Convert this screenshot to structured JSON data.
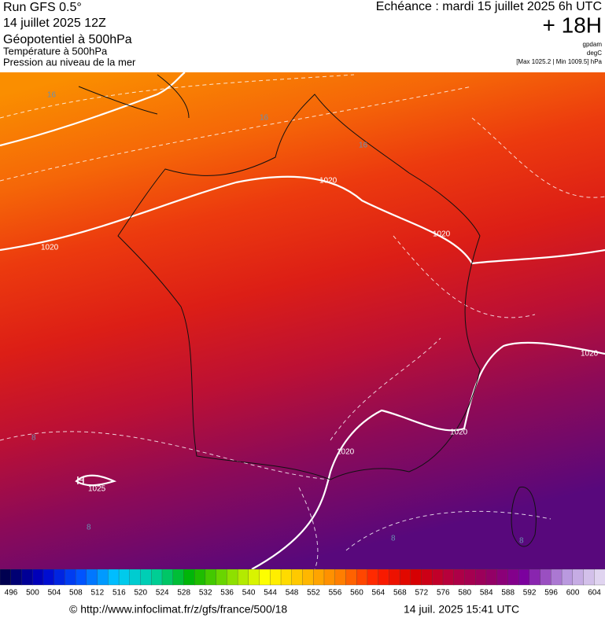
{
  "header": {
    "left": [
      "Run GFS 0.5°",
      "14 juillet 2025 12Z",
      "Géopotentiel à 500hPa",
      "Température à 500hPa",
      "Pression au niveau de la mer"
    ],
    "valid_time": "Echéance : mardi 15 juillet 2025 6h UTC",
    "lead_time": "+ 18H",
    "units": [
      "gpdam",
      "degC",
      "[Max 1025.2 | Min 1009.5] hPa"
    ]
  },
  "map": {
    "contour_labels": [
      "16",
      "16",
      "16",
      "1020",
      "1020",
      "1020",
      "1020",
      "1020",
      "1020",
      "8",
      "8",
      "8",
      "8",
      "H",
      "1025"
    ]
  },
  "colorbar": {
    "ticks": [
      496,
      500,
      504,
      508,
      512,
      516,
      520,
      524,
      528,
      532,
      536,
      540,
      544,
      548,
      552,
      556,
      560,
      564,
      568,
      572,
      576,
      580,
      584,
      588,
      592,
      596,
      600,
      604
    ],
    "colors": [
      "#000050",
      "#0000c8",
      "#0050ff",
      "#00c8ff",
      "#00d0a0",
      "#00b400",
      "#80dc00",
      "#ffff00",
      "#ffc000",
      "#ff8000",
      "#ff2000",
      "#d80000",
      "#b40040",
      "#960060",
      "#7a00a0",
      "#b490dc",
      "#e0d4f0"
    ]
  },
  "footer": {
    "url": "© http://www.infoclimat.fr/z/gfs/france/500/18",
    "timestamp": "14 juil. 2025 15:41 UTC"
  }
}
